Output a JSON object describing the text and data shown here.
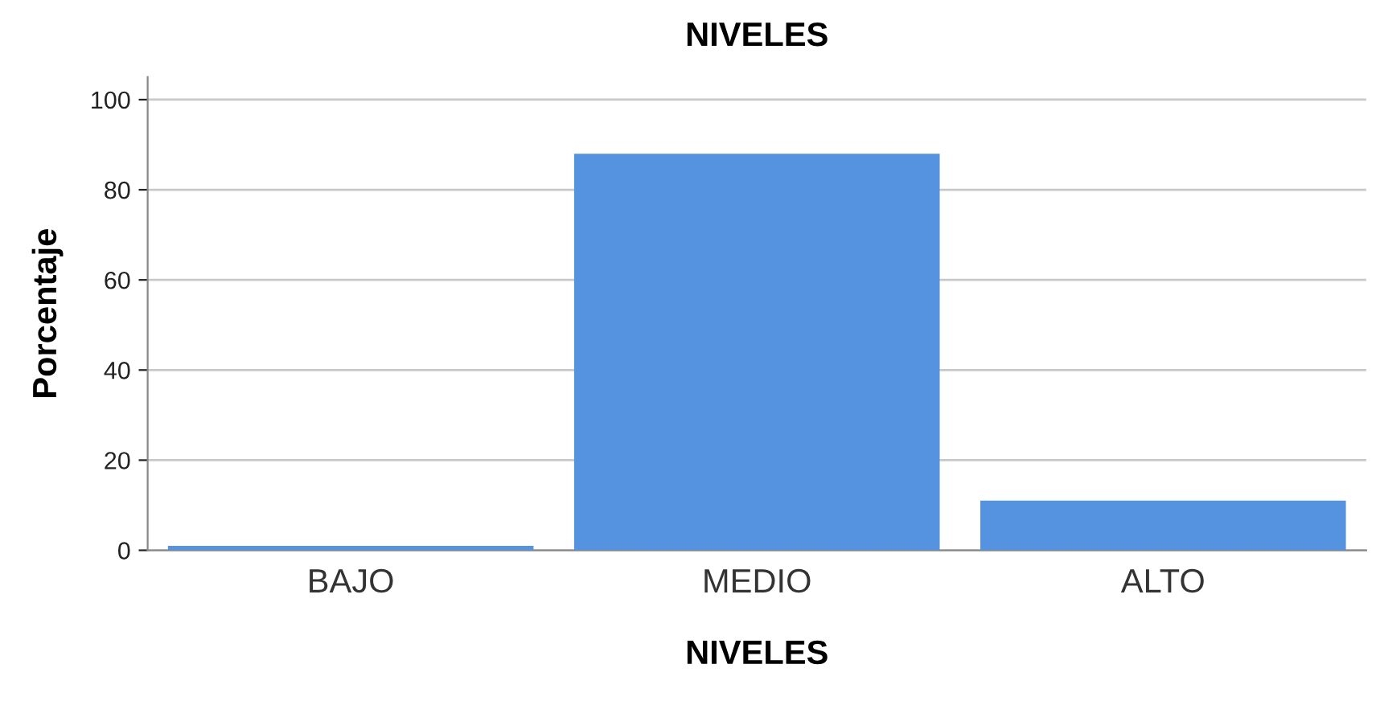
{
  "chart_data": {
    "type": "bar",
    "title": "NIVELES",
    "xlabel": "NIVELES",
    "ylabel": "Porcentaje",
    "categories": [
      "BAJO",
      "MEDIO",
      "ALTO"
    ],
    "values": [
      1,
      88,
      11
    ],
    "color": "#5592e0",
    "ylim": [
      0,
      105
    ],
    "yticks": [
      0,
      20,
      40,
      60,
      80,
      100
    ],
    "grid": "y",
    "legend": false
  }
}
